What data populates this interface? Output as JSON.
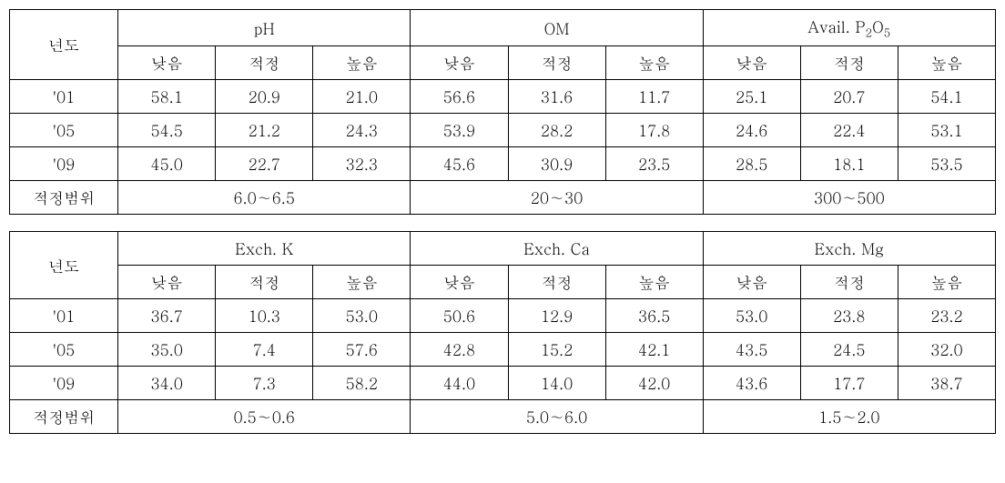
{
  "table1": {
    "header_year": "년도",
    "groups": [
      {
        "label": "pH",
        "subs": [
          "낮음",
          "적정",
          "높음"
        ]
      },
      {
        "label": "OM",
        "subs": [
          "낮음",
          "적정",
          "높음"
        ]
      },
      {
        "label_html": "Avail. P<span class='sub'>2</span>O<span class='sub'>5</span>",
        "subs": [
          "낮음",
          "적정",
          "높음"
        ]
      }
    ],
    "rows": [
      {
        "year": "'01",
        "v": [
          "58.1",
          "20.9",
          "21.0",
          "56.6",
          "31.6",
          "11.7",
          "25.1",
          "20.7",
          "54.1"
        ]
      },
      {
        "year": "'05",
        "v": [
          "54.5",
          "21.2",
          "24.3",
          "53.9",
          "28.2",
          "17.8",
          "24.6",
          "22.4",
          "53.1"
        ]
      },
      {
        "year": "'09",
        "v": [
          "45.0",
          "22.7",
          "32.3",
          "45.6",
          "30.9",
          "23.5",
          "28.5",
          "18.1",
          "53.5"
        ]
      }
    ],
    "range_label": "적정범위",
    "ranges": [
      "6.0∼6.5",
      "20∼30",
      "300∼500"
    ]
  },
  "table2": {
    "header_year": "년도",
    "groups": [
      {
        "label": "Exch. K",
        "subs": [
          "낮음",
          "적정",
          "높음"
        ]
      },
      {
        "label": "Exch. Ca",
        "subs": [
          "낮음",
          "적정",
          "높음"
        ]
      },
      {
        "label": "Exch. Mg",
        "subs": [
          "낮음",
          "적정",
          "높음"
        ]
      }
    ],
    "rows": [
      {
        "year": "'01",
        "v": [
          "36.7",
          "10.3",
          "53.0",
          "50.6",
          "12.9",
          "36.5",
          "53.0",
          "23.8",
          "23.2"
        ]
      },
      {
        "year": "'05",
        "v": [
          "35.0",
          "7.4",
          "57.6",
          "42.8",
          "15.2",
          "42.1",
          "43.5",
          "24.5",
          "32.0"
        ]
      },
      {
        "year": "'09",
        "v": [
          "34.0",
          "7.3",
          "58.2",
          "44.0",
          "14.0",
          "42.0",
          "43.6",
          "17.7",
          "38.7"
        ]
      }
    ],
    "range_label": "적정범위",
    "ranges": [
      "0.5∼0.6",
      "5.0∼6.0",
      "1.5∼2.0"
    ]
  }
}
